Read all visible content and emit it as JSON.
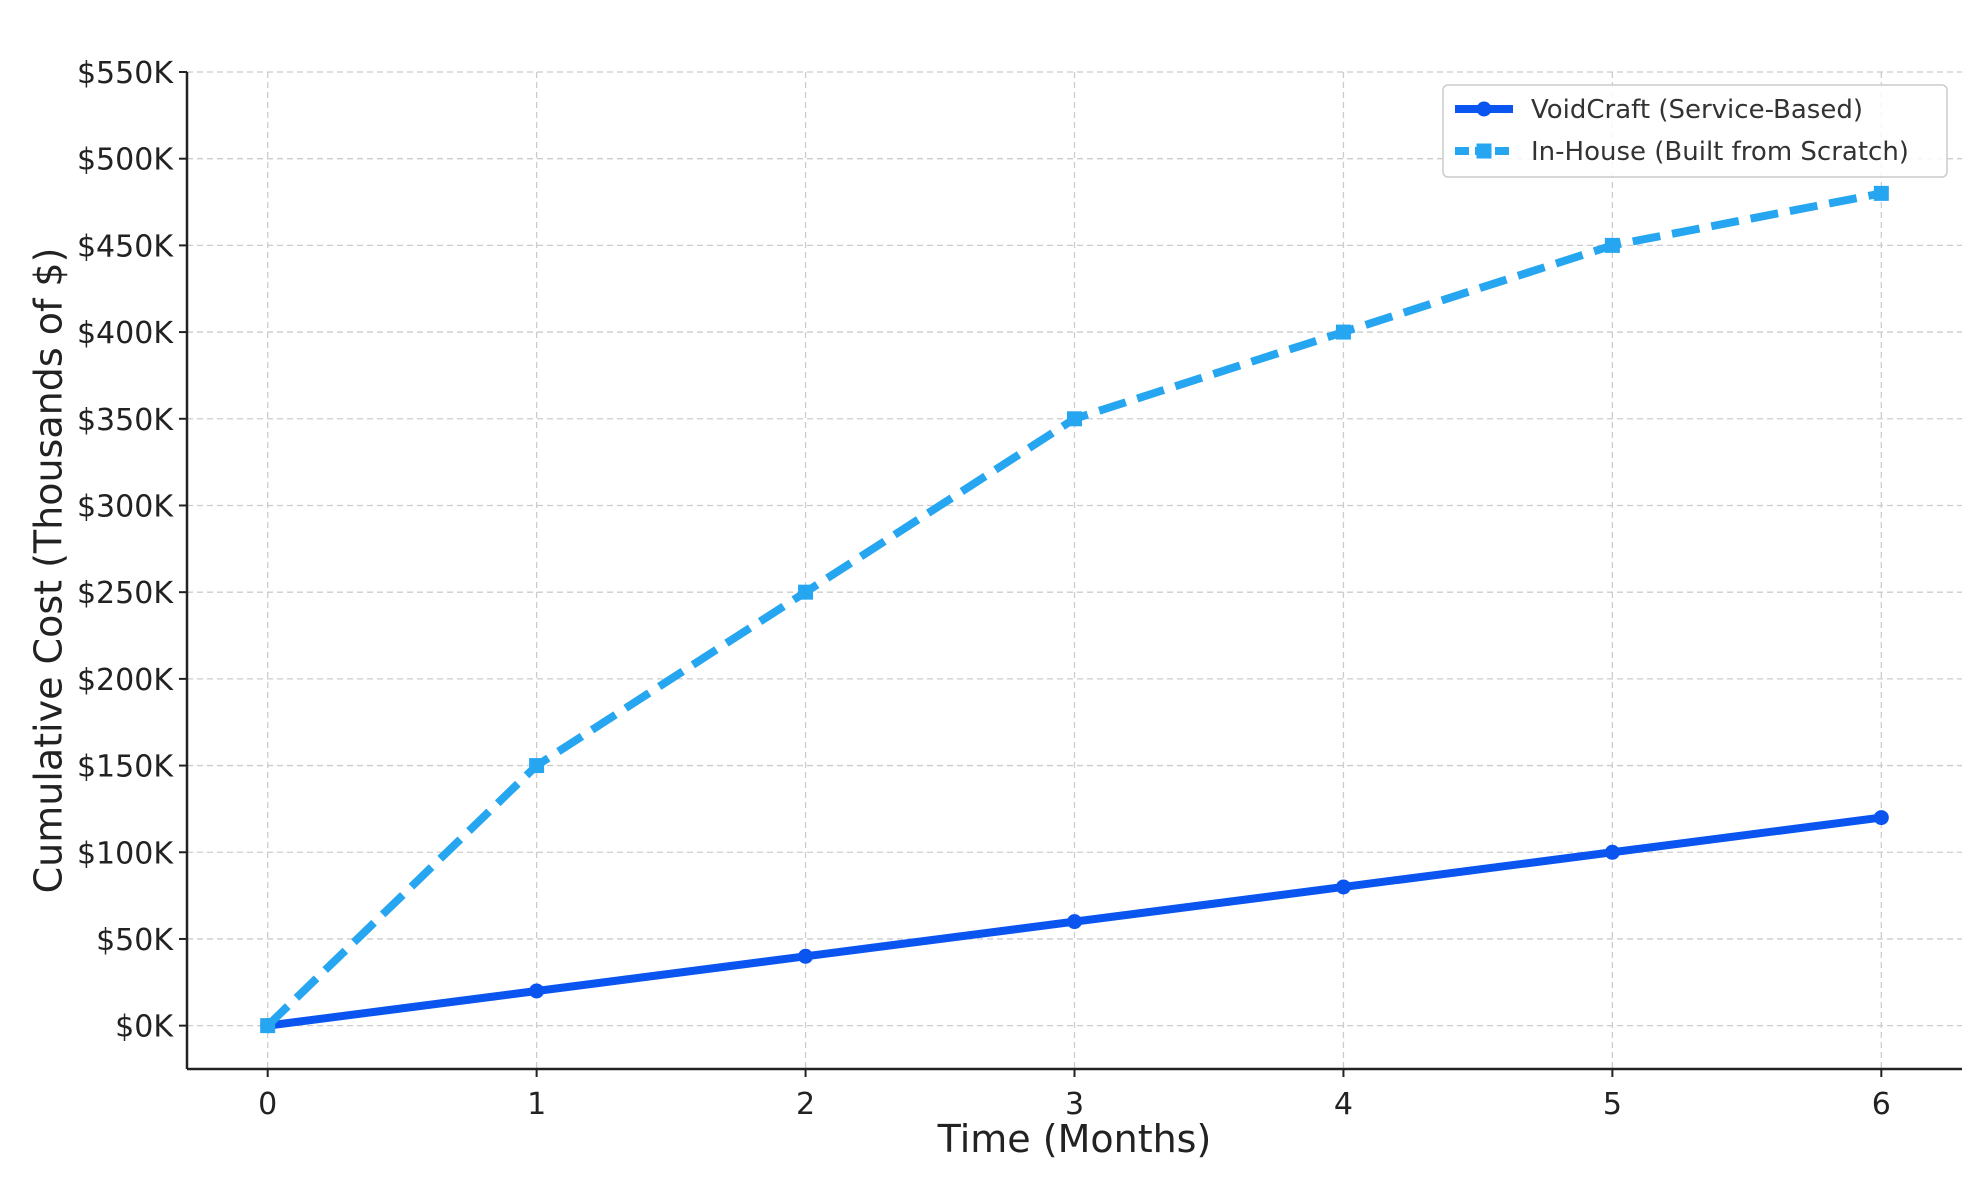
{
  "chart_data": {
    "type": "line",
    "title": "",
    "xlabel": "Time (Months)",
    "ylabel": "Cumulative Cost (Thousands of $)",
    "x": [
      0,
      1,
      2,
      3,
      4,
      5,
      6
    ],
    "xlim": [
      -0.3,
      6.3
    ],
    "ylim": [
      -25,
      550
    ],
    "x_ticks": [
      0,
      1,
      2,
      3,
      4,
      5,
      6
    ],
    "y_ticks": [
      0,
      50,
      100,
      150,
      200,
      250,
      300,
      350,
      400,
      450,
      500,
      550
    ],
    "y_tick_labels": [
      "$0K",
      "$50K",
      "$100K",
      "$150K",
      "$200K",
      "$250K",
      "$300K",
      "$350K",
      "$400K",
      "$450K",
      "$500K",
      "$550K"
    ],
    "grid": true,
    "legend_position": "top-right",
    "series": [
      {
        "name": "VoidCraft (Service-Based)",
        "values": [
          0,
          20,
          40,
          60,
          80,
          100,
          120
        ],
        "color": "#0a55f0",
        "line_style": "solid",
        "marker": "circle"
      },
      {
        "name": "In-House (Built from Scratch)",
        "values": [
          0,
          150,
          250,
          350,
          400,
          450,
          480
        ],
        "color": "#26a6f0",
        "line_style": "dashed",
        "marker": "square"
      }
    ]
  }
}
